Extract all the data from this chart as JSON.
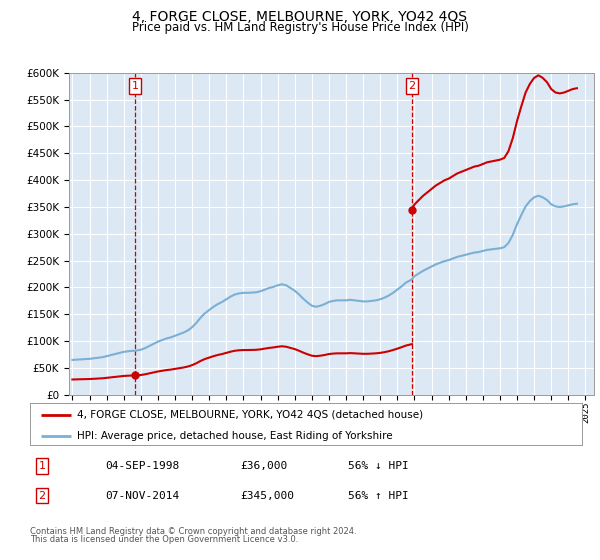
{
  "title": "4, FORGE CLOSE, MELBOURNE, YORK, YO42 4QS",
  "subtitle": "Price paid vs. HM Land Registry's House Price Index (HPI)",
  "legend_line1": "4, FORGE CLOSE, MELBOURNE, YORK, YO42 4QS (detached house)",
  "legend_line2": "HPI: Average price, detached house, East Riding of Yorkshire",
  "annotation1_label": "1",
  "annotation1_date": "04-SEP-1998",
  "annotation1_price": "£36,000",
  "annotation1_hpi": "56% ↓ HPI",
  "annotation1_year": 1998.67,
  "annotation1_value": 36000,
  "annotation2_label": "2",
  "annotation2_date": "07-NOV-2014",
  "annotation2_price": "£345,000",
  "annotation2_hpi": "56% ↑ HPI",
  "annotation2_year": 2014.85,
  "annotation2_value": 345000,
  "footer1": "Contains HM Land Registry data © Crown copyright and database right 2024.",
  "footer2": "This data is licensed under the Open Government Licence v3.0.",
  "ylim": [
    0,
    600000
  ],
  "xlim": [
    1994.8,
    2025.5
  ],
  "bg_color": "#dce9f5",
  "grid_color": "#ffffff",
  "red_line_color": "#cc0000",
  "blue_line_color": "#7bafd4",
  "hpi_at_1998": 82000,
  "hpi_at_2014": 215000,
  "hpi_data_x": [
    1995.0,
    1995.25,
    1995.5,
    1995.75,
    1996.0,
    1996.25,
    1996.5,
    1996.75,
    1997.0,
    1997.25,
    1997.5,
    1997.75,
    1998.0,
    1998.25,
    1998.5,
    1998.67,
    1999.0,
    1999.25,
    1999.5,
    1999.75,
    2000.0,
    2000.25,
    2000.5,
    2000.75,
    2001.0,
    2001.25,
    2001.5,
    2001.75,
    2002.0,
    2002.25,
    2002.5,
    2002.75,
    2003.0,
    2003.25,
    2003.5,
    2003.75,
    2004.0,
    2004.25,
    2004.5,
    2004.75,
    2005.0,
    2005.25,
    2005.5,
    2005.75,
    2006.0,
    2006.25,
    2006.5,
    2006.75,
    2007.0,
    2007.25,
    2007.5,
    2007.75,
    2008.0,
    2008.25,
    2008.5,
    2008.75,
    2009.0,
    2009.25,
    2009.5,
    2009.75,
    2010.0,
    2010.25,
    2010.5,
    2010.75,
    2011.0,
    2011.25,
    2011.5,
    2011.75,
    2012.0,
    2012.25,
    2012.5,
    2012.75,
    2013.0,
    2013.25,
    2013.5,
    2013.75,
    2014.0,
    2014.25,
    2014.5,
    2014.85,
    2015.0,
    2015.25,
    2015.5,
    2015.75,
    2016.0,
    2016.25,
    2016.5,
    2016.75,
    2017.0,
    2017.25,
    2017.5,
    2017.75,
    2018.0,
    2018.25,
    2018.5,
    2018.75,
    2019.0,
    2019.25,
    2019.5,
    2019.75,
    2020.0,
    2020.25,
    2020.5,
    2020.75,
    2021.0,
    2021.25,
    2021.5,
    2021.75,
    2022.0,
    2022.25,
    2022.5,
    2022.75,
    2023.0,
    2023.25,
    2023.5,
    2023.75,
    2024.0,
    2024.25,
    2024.5
  ],
  "hpi_data_y": [
    65000,
    65500,
    66000,
    66500,
    67000,
    68000,
    69000,
    70000,
    72000,
    74000,
    76000,
    78000,
    80000,
    81000,
    82000,
    82000,
    84000,
    87000,
    91000,
    95000,
    99000,
    102000,
    105000,
    107000,
    110000,
    113000,
    116000,
    120000,
    126000,
    134000,
    144000,
    152000,
    158000,
    164000,
    169000,
    173000,
    178000,
    183000,
    187000,
    189000,
    190000,
    190000,
    190500,
    191000,
    193000,
    196000,
    199000,
    201000,
    204000,
    206000,
    204000,
    199000,
    194000,
    187000,
    179000,
    172000,
    166000,
    164000,
    166000,
    169000,
    173000,
    175000,
    176000,
    176000,
    176000,
    177000,
    176000,
    175000,
    174000,
    174000,
    175000,
    176000,
    178000,
    181000,
    185000,
    190000,
    196000,
    202000,
    209000,
    215000,
    221000,
    226000,
    231000,
    235000,
    239000,
    243000,
    246000,
    249000,
    251000,
    254000,
    257000,
    259000,
    261000,
    263000,
    265000,
    266000,
    268000,
    270000,
    271000,
    272000,
    273000,
    275000,
    283000,
    298000,
    318000,
    335000,
    351000,
    361000,
    368000,
    371000,
    368000,
    363000,
    355000,
    351000,
    350000,
    351000,
    353000,
    355000,
    356000
  ]
}
